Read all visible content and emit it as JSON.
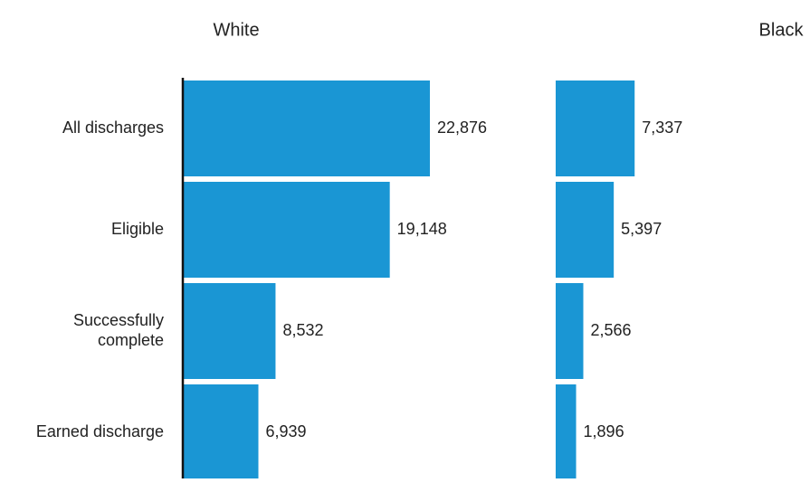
{
  "chart_data": {
    "type": "bar",
    "orientation": "horizontal",
    "categories": [
      "All discharges",
      "Eligible",
      "Successfully complete",
      "Earned discharge"
    ],
    "category_lines": [
      [
        "All discharges"
      ],
      [
        "Eligible"
      ],
      [
        "Successfully",
        "complete"
      ],
      [
        "Earned discharge"
      ]
    ],
    "series": [
      {
        "name": "White",
        "values": [
          22876,
          19148,
          8532,
          6939
        ],
        "labels": [
          "22,876",
          "19,148",
          "8,532",
          "6,939"
        ]
      },
      {
        "name": "Black",
        "values": [
          7337,
          5397,
          2566,
          1896
        ],
        "labels": [
          "7,337",
          "5,397",
          "2,566",
          "1,896"
        ]
      }
    ],
    "bar_color": "#1a96d4",
    "axis_color": "#111111",
    "grid": false
  }
}
